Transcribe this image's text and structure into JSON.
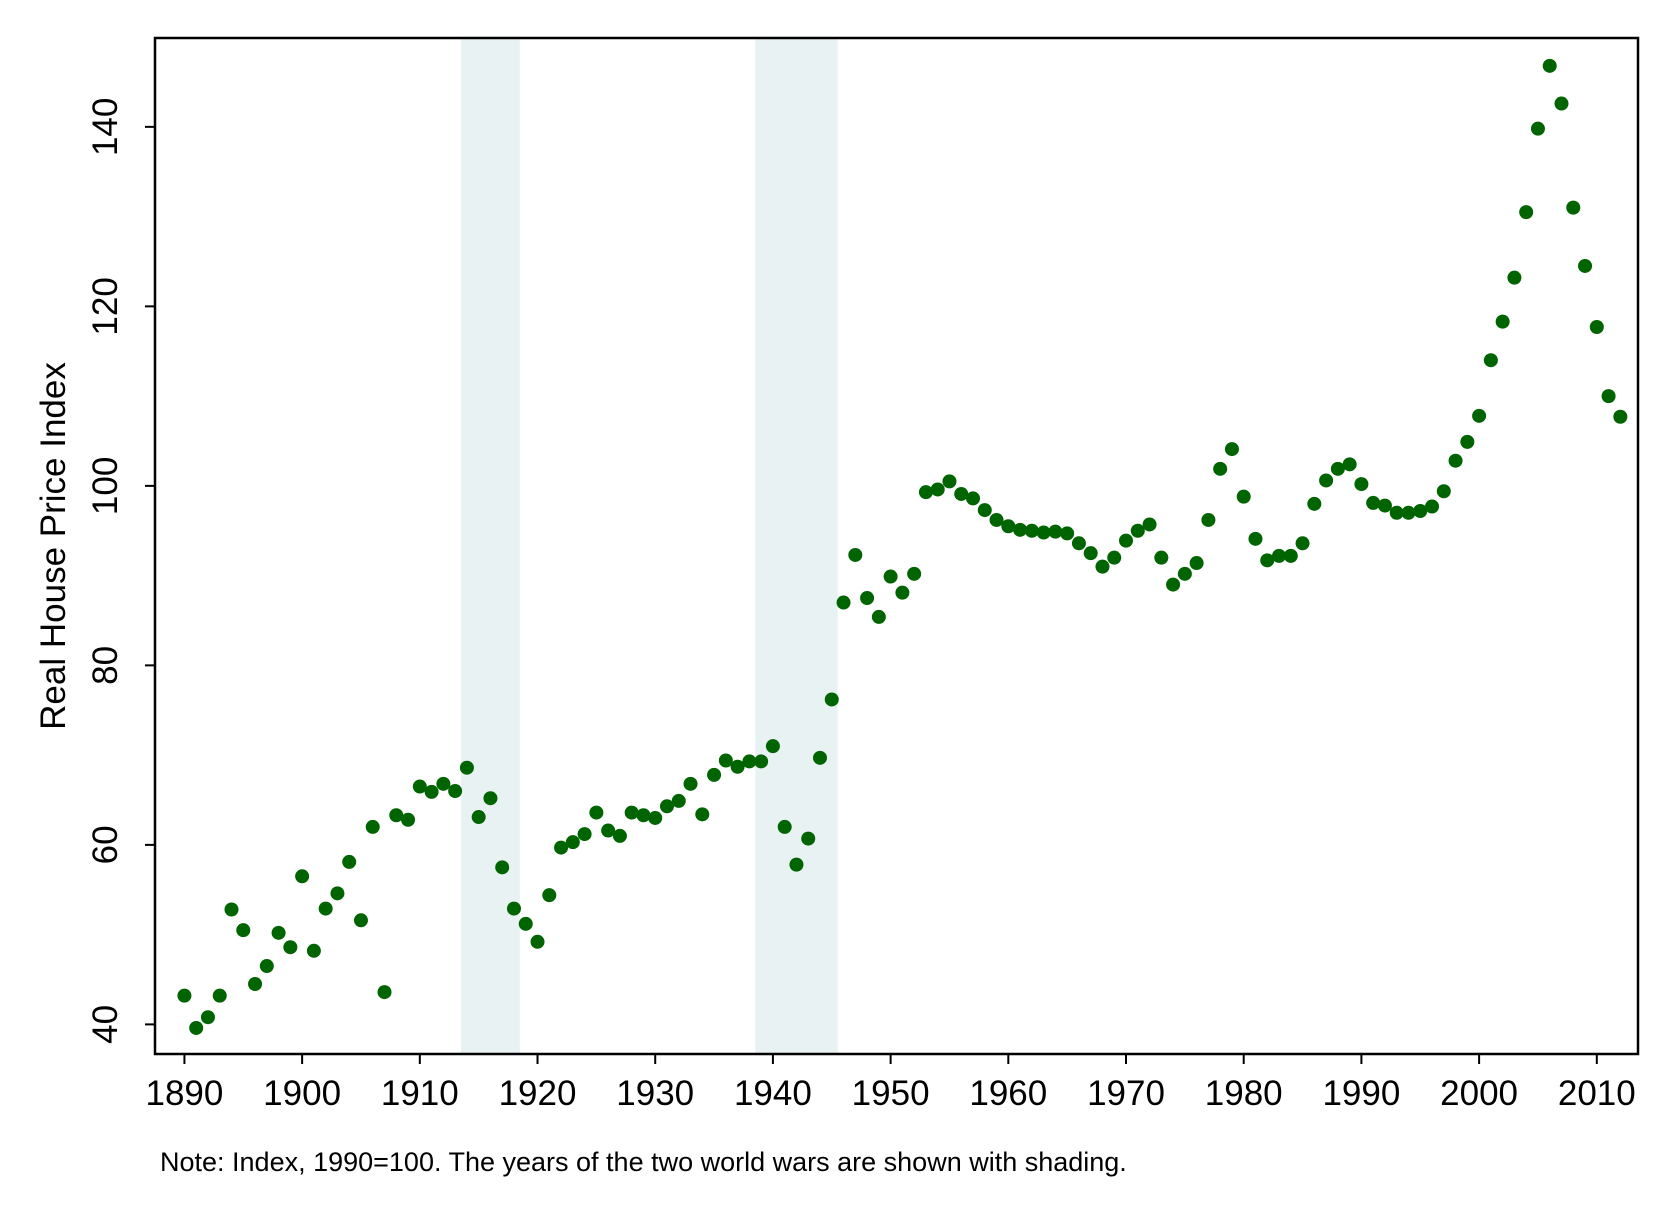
{
  "chart_data": {
    "type": "scatter",
    "title": "",
    "xlabel": "",
    "ylabel": "Real House Price Index",
    "note": "Note: Index, 1990=100. The years of the two world wars are shown with shading.",
    "xlim": [
      1887.5,
      2013.5
    ],
    "ylim": [
      36.7,
      149.9
    ],
    "x_ticks": [
      "1890",
      "1900",
      "1910",
      "1920",
      "1930",
      "1940",
      "1950",
      "1960",
      "1970",
      "1980",
      "1990",
      "2000",
      "2010"
    ],
    "y_ticks": [
      "40",
      "60",
      "80",
      "100",
      "120",
      "140"
    ],
    "grid": false,
    "legend": "none",
    "marker_color": "#006400",
    "shading_color": "#e8f2f3",
    "shaded_periods": [
      {
        "name": "World War I",
        "start": 1914,
        "end": 1918
      },
      {
        "name": "World War II",
        "start": 1939,
        "end": 1945
      }
    ],
    "x": [
      1890,
      1891,
      1892,
      1893,
      1894,
      1895,
      1896,
      1897,
      1898,
      1899,
      1900,
      1901,
      1902,
      1903,
      1904,
      1905,
      1906,
      1907,
      1908,
      1909,
      1910,
      1911,
      1912,
      1913,
      1914,
      1915,
      1916,
      1917,
      1918,
      1919,
      1920,
      1921,
      1922,
      1923,
      1924,
      1925,
      1926,
      1927,
      1928,
      1929,
      1930,
      1931,
      1932,
      1933,
      1934,
      1935,
      1936,
      1937,
      1938,
      1939,
      1940,
      1941,
      1942,
      1943,
      1944,
      1945,
      1946,
      1947,
      1948,
      1949,
      1950,
      1951,
      1952,
      1953,
      1954,
      1955,
      1956,
      1957,
      1958,
      1959,
      1960,
      1961,
      1962,
      1963,
      1964,
      1965,
      1966,
      1967,
      1968,
      1969,
      1970,
      1971,
      1972,
      1973,
      1974,
      1975,
      1976,
      1977,
      1978,
      1979,
      1980,
      1981,
      1982,
      1983,
      1984,
      1985,
      1986,
      1987,
      1988,
      1989,
      1990,
      1991,
      1992,
      1993,
      1994,
      1995,
      1996,
      1997,
      1998,
      1999,
      2000,
      2001,
      2002,
      2003,
      2004,
      2005,
      2006,
      2007,
      2008,
      2009,
      2010,
      2011,
      2012
    ],
    "y": [
      43.2,
      39.6,
      40.8,
      43.2,
      52.8,
      50.5,
      44.5,
      46.5,
      50.2,
      48.6,
      56.5,
      48.2,
      52.9,
      54.6,
      58.1,
      51.6,
      62.0,
      43.6,
      63.3,
      62.8,
      66.5,
      65.9,
      66.8,
      66.0,
      68.6,
      63.1,
      65.2,
      57.5,
      52.9,
      51.2,
      49.2,
      54.4,
      59.7,
      60.3,
      61.2,
      63.6,
      61.6,
      61.0,
      63.6,
      63.3,
      63.0,
      64.3,
      64.9,
      66.8,
      63.4,
      67.8,
      69.4,
      68.7,
      69.3,
      69.3,
      71.0,
      62.0,
      57.8,
      60.7,
      69.7,
      76.2,
      87.0,
      92.3,
      87.5,
      85.4,
      89.9,
      88.1,
      90.2,
      99.3,
      99.6,
      100.5,
      99.1,
      98.6,
      97.3,
      96.2,
      95.5,
      95.1,
      95.0,
      94.8,
      94.9,
      94.7,
      93.6,
      92.5,
      91.0,
      92.0,
      93.9,
      95.0,
      95.7,
      92.0,
      89.0,
      90.2,
      91.4,
      96.2,
      101.9,
      104.1,
      98.8,
      94.1,
      91.7,
      92.2,
      92.2,
      93.6,
      98.0,
      100.6,
      101.9,
      102.4,
      100.2,
      98.1,
      97.8,
      97.0,
      97.0,
      97.2,
      97.7,
      99.4,
      102.8,
      104.9,
      107.8,
      114.0,
      118.3,
      123.2,
      130.5,
      139.8,
      146.8,
      142.6,
      131.0,
      124.5,
      117.7,
      110.0,
      107.7
    ]
  }
}
